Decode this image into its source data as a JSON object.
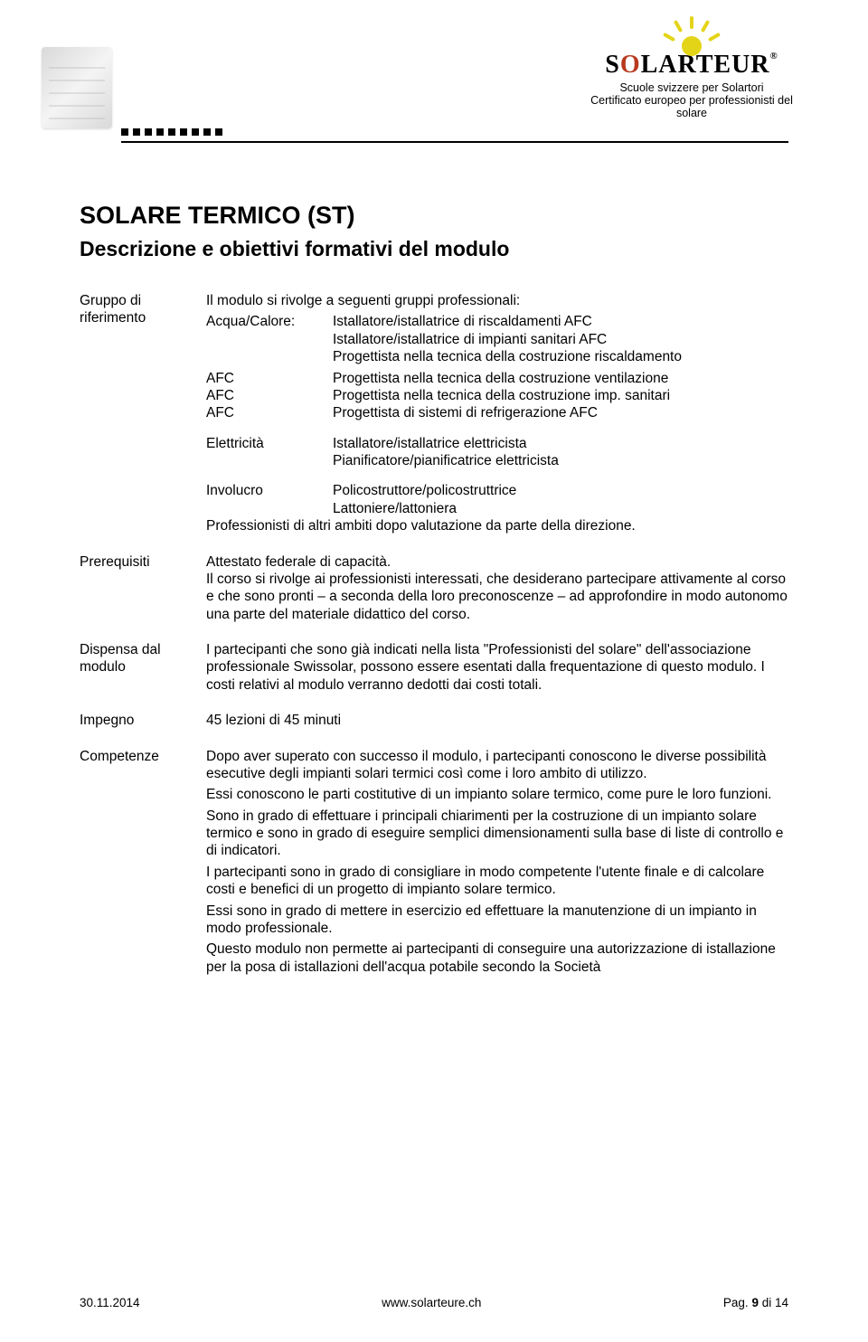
{
  "header": {
    "brand_pre": "S",
    "brand_red": "O",
    "brand_post": "LARTEUR",
    "reg": "®",
    "tagline1": "Scuole svizzere per Solartori",
    "tagline2": "Certificato europeo per professionisti del solare"
  },
  "title": "SOLARE TERMICO (ST)",
  "subtitle": "Descrizione e obiettivi formativi del modulo",
  "sections": {
    "gruppo": {
      "label": "Gruppo di riferimento",
      "intro": "Il modulo si rivolge a seguenti gruppi professionali:",
      "acqua_label": "Acqua/Calore:",
      "acqua_lines": [
        "Istallatore/istallatrice di riscaldamenti AFC",
        "Istallatore/istallatrice di impianti sanitari AFC",
        "Progettista nella tecnica della costruzione riscaldamento"
      ],
      "afc_label": "AFC",
      "afc_lines": [
        "Progettista nella tecnica della costruzione ventilazione",
        "Progettista nella tecnica della costruzione imp. sanitari",
        "Progettista di sistemi di refrigerazione AFC"
      ],
      "elett_label": "Elettricità",
      "elett_lines": [
        "Istallatore/istallatrice elettricista",
        "Pianificatore/pianificatrice elettricista"
      ],
      "inv_label": "Involucro",
      "inv_lines": [
        "Policostruttore/policostruttrice",
        "Lattoniere/lattoniera"
      ],
      "closing": "Professionisti di altri ambiti dopo valutazione da parte della direzione."
    },
    "prerequisiti": {
      "label": "Prerequisiti",
      "text": "Attestato federale di capacità.\nIl corso si rivolge ai professionisti interessati, che desiderano partecipare attivamente al corso e che sono pronti – a seconda della loro preconoscenze – ad approfondire in modo autonomo una parte del materiale didattico del corso."
    },
    "dispensa": {
      "label": "Dispensa dal modulo",
      "text": "I partecipanti che sono già indicati nella lista \"Professionisti del solare\" dell'associazione professionale Swissolar, possono essere esentati dalla frequentazione di questo modulo. I costi relativi al modulo verranno dedotti dai costi totali."
    },
    "impegno": {
      "label": "Impegno",
      "text": "45 lezioni di 45 minuti"
    },
    "competenze": {
      "label": "Competenze",
      "paras": [
        "Dopo aver superato con successo il modulo, i partecipanti conoscono le diverse possibilità esecutive degli impianti solari termici così come i loro ambito di utilizzo.",
        "Essi conoscono le parti costitutive di un impianto solare termico, come pure le loro funzioni.",
        "Sono in grado di effettuare i principali chiarimenti per la costruzione di un impianto solare termico e sono in grado di eseguire semplici dimensionamenti sulla base di liste di controllo e di indicatori.",
        "I partecipanti sono in grado di consigliare in modo competente l'utente finale e di calcolare costi e benefici di un progetto di impianto solare termico.",
        "Essi sono in grado di mettere in esercizio ed effettuare la manutenzione di un impianto in modo professionale.",
        "Questo modulo non permette ai partecipanti di conseguire una autorizzazione di istallazione per la posa di istallazioni dell'acqua potabile secondo la Società"
      ]
    }
  },
  "footer": {
    "date": "30.11.2014",
    "url": "www.solarteure.ch",
    "page": "Pag. 9 di 14"
  }
}
